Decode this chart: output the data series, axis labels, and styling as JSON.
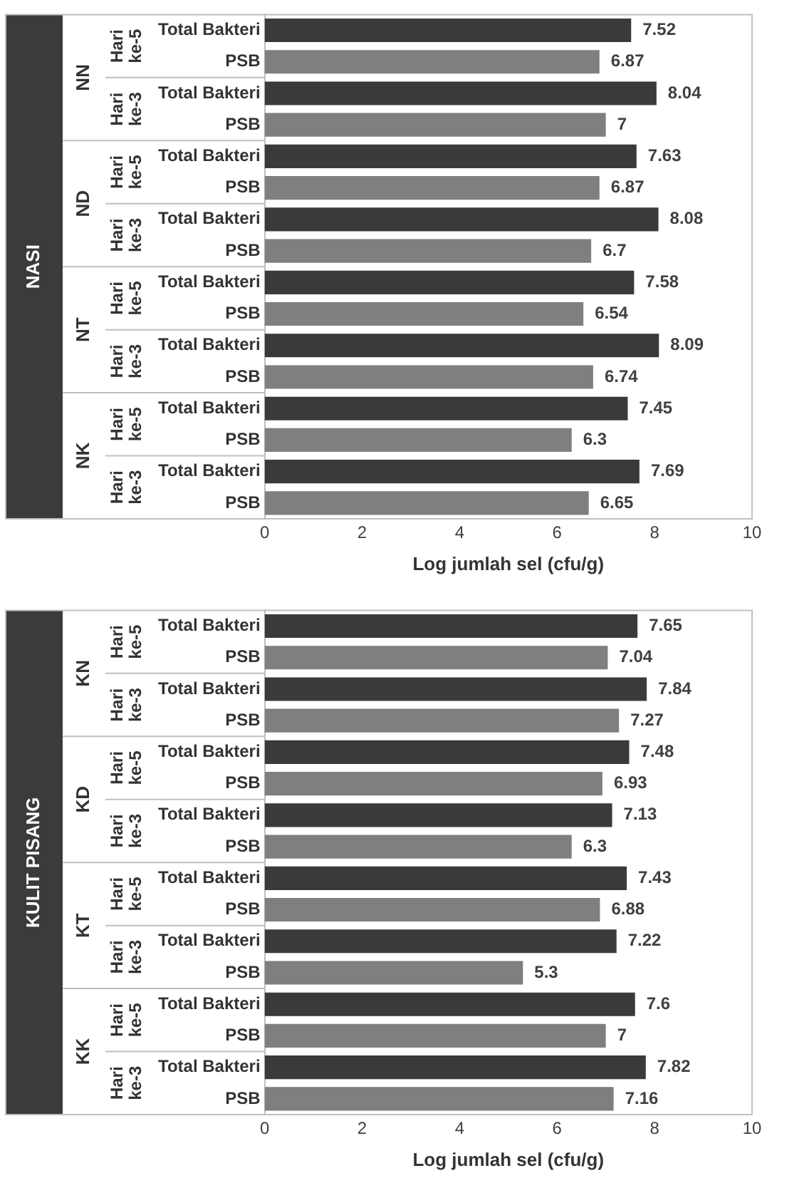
{
  "chart_data": [
    {
      "type": "bar",
      "orientation": "horizontal",
      "ylabel": "NASI",
      "xlabel": "Log jumlah sel (cfu/g)",
      "categories": [
        "Total Bakteri",
        "PSB",
        "Total Bakteri",
        "PSB",
        "Total Bakteri",
        "PSB",
        "Total Bakteri",
        "PSB",
        "Total Bakteri",
        "PSB",
        "Total Bakteri",
        "PSB",
        "Total Bakteri",
        "PSB",
        "Total Bakteri",
        "PSB"
      ],
      "values": [
        7.52,
        6.87,
        8.04,
        7,
        7.63,
        6.87,
        8.08,
        6.7,
        7.58,
        6.54,
        8.09,
        6.74,
        7.45,
        6.3,
        7.69,
        6.65
      ],
      "colors": [
        "#3a3a3a",
        "#7f7f7f",
        "#3a3a3a",
        "#7f7f7f",
        "#3a3a3a",
        "#7f7f7f",
        "#3a3a3a",
        "#7f7f7f",
        "#3a3a3a",
        "#7f7f7f",
        "#3a3a3a",
        "#7f7f7f",
        "#3a3a3a",
        "#7f7f7f",
        "#3a3a3a",
        "#7f7f7f"
      ],
      "annotations": [
        "NN",
        "Hari ke-5",
        "Hari ke-3",
        "ND",
        "Hari ke-5",
        "Hari ke-3",
        "NT",
        "Hari ke-5",
        "Hari ke-3",
        "NK",
        "Hari ke-5",
        "Hari ke-3"
      ],
      "xlim": [
        0,
        10
      ],
      "xticks": [
        0,
        2,
        4,
        6,
        8,
        10
      ],
      "grid": false,
      "data_labels": true
    },
    {
      "type": "bar",
      "orientation": "horizontal",
      "ylabel": "KULIT PISANG",
      "xlabel": "Log jumlah sel (cfu/g)",
      "categories": [
        "Total Bakteri",
        "PSB",
        "Total Bakteri",
        "PSB",
        "Total Bakteri",
        "PSB",
        "Total Bakteri",
        "PSB",
        "Total Bakteri",
        "PSB",
        "Total Bakteri",
        "PSB",
        "Total Bakteri",
        "PSB",
        "Total Bakteri",
        "PSB"
      ],
      "values": [
        7.65,
        7.04,
        7.84,
        7.27,
        7.48,
        6.93,
        7.13,
        6.3,
        7.43,
        6.88,
        7.22,
        5.3,
        7.6,
        7,
        7.82,
        7.16
      ],
      "colors": [
        "#3a3a3a",
        "#7f7f7f",
        "#3a3a3a",
        "#7f7f7f",
        "#3a3a3a",
        "#7f7f7f",
        "#3a3a3a",
        "#7f7f7f",
        "#3a3a3a",
        "#7f7f7f",
        "#3a3a3a",
        "#7f7f7f",
        "#3a3a3a",
        "#7f7f7f",
        "#3a3a3a",
        "#7f7f7f"
      ],
      "annotations": [
        "KN",
        "Hari ke-5",
        "Hari ke-3",
        "KD",
        "Hari ke-5",
        "Hari ke-3",
        "KT",
        "Hari ke-5",
        "Hari ke-3",
        "KK",
        "Hari ke-5",
        "Hari ke-3"
      ],
      "xlim": [
        0,
        10
      ],
      "xticks": [
        0,
        2,
        4,
        6,
        8,
        10
      ],
      "grid": false,
      "data_labels": true
    }
  ]
}
